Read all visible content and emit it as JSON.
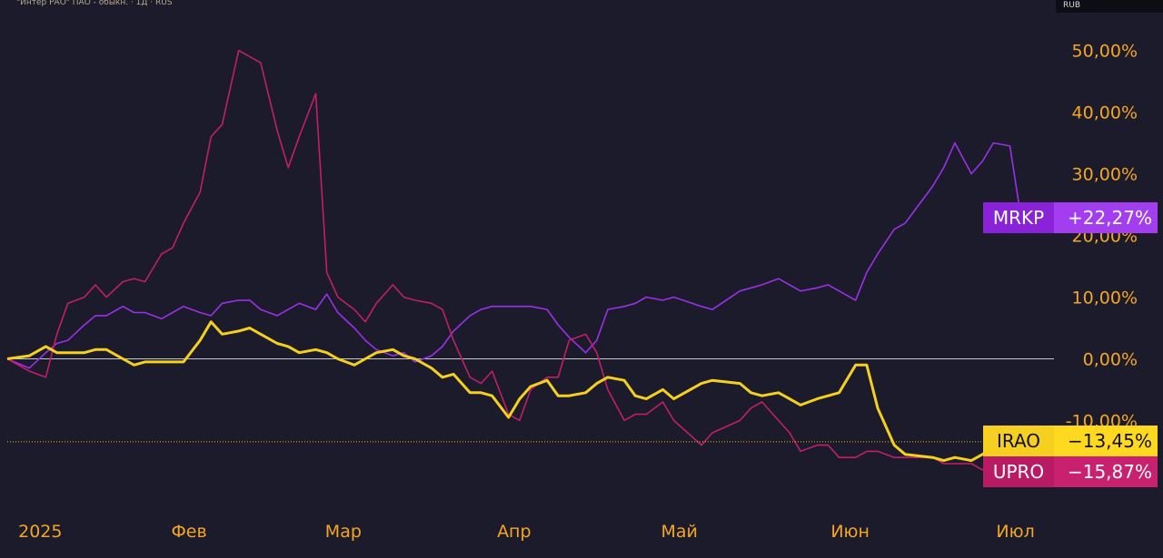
{
  "header": {
    "instrument": "\"Интер РАО\" ПАО - обыкн. · 1Д · RUS",
    "currency": "RUB"
  },
  "colors": {
    "background": "#1b1b2b",
    "axis_text": "#f5a623",
    "IRAO": "#f5d020",
    "MRKP": "#9b30e8",
    "UPRO": "#c21e6a",
    "zero_line": "#e6e6e6",
    "grid": "#2a2a3d"
  },
  "chart_data": {
    "type": "line",
    "x_tick_labels": [
      "2025",
      "Фев",
      "Мар",
      "Апр",
      "Май",
      "Июн",
      "Июл"
    ],
    "x_tick_dates": [
      "2025-01-01",
      "2025-02-01",
      "2025-03-01",
      "2025-04-01",
      "2025-05-01",
      "2025-06-01",
      "2025-07-01"
    ],
    "x_range": [
      "2024-12-30",
      "2025-07-08"
    ],
    "y_tick_values": [
      -10,
      0,
      10,
      20,
      30,
      40,
      50
    ],
    "y_tick_labels": [
      "-10,00%",
      "0,00%",
      "10,00%",
      "20,00%",
      "30,00%",
      "40,00%",
      "50,00%"
    ],
    "ylim": [
      -22,
      57
    ],
    "y_unit": "%",
    "grid": false,
    "zero_line": true,
    "series": [
      {
        "name": "MRKP",
        "last_label": "+22,27%",
        "last_value": 22.27,
        "x": [
          "2024-12-30",
          "2025-01-03",
          "2025-01-06",
          "2025-01-08",
          "2025-01-10",
          "2025-01-13",
          "2025-01-15",
          "2025-01-17",
          "2025-01-20",
          "2025-01-22",
          "2025-01-24",
          "2025-01-27",
          "2025-01-29",
          "2025-01-31",
          "2025-02-03",
          "2025-02-05",
          "2025-02-07",
          "2025-02-10",
          "2025-02-12",
          "2025-02-14",
          "2025-02-17",
          "2025-02-19",
          "2025-02-21",
          "2025-02-24",
          "2025-02-26",
          "2025-02-28",
          "2025-03-03",
          "2025-03-05",
          "2025-03-07",
          "2025-03-10",
          "2025-03-12",
          "2025-03-14",
          "2025-03-17",
          "2025-03-19",
          "2025-03-21",
          "2025-03-24",
          "2025-03-26",
          "2025-03-28",
          "2025-03-31",
          "2025-04-02",
          "2025-04-04",
          "2025-04-07",
          "2025-04-09",
          "2025-04-11",
          "2025-04-14",
          "2025-04-16",
          "2025-04-18",
          "2025-04-21",
          "2025-04-23",
          "2025-04-25",
          "2025-04-28",
          "2025-04-30",
          "2025-05-05",
          "2025-05-07",
          "2025-05-12",
          "2025-05-14",
          "2025-05-16",
          "2025-05-19",
          "2025-05-21",
          "2025-05-23",
          "2025-05-26",
          "2025-05-28",
          "2025-05-30",
          "2025-06-02",
          "2025-06-04",
          "2025-06-06",
          "2025-06-09",
          "2025-06-11",
          "2025-06-16",
          "2025-06-18",
          "2025-06-20",
          "2025-06-23",
          "2025-06-25",
          "2025-06-27",
          "2025-06-30",
          "2025-07-02",
          "2025-07-03"
        ],
        "y": [
          0,
          -1.5,
          1,
          2.5,
          3,
          5.5,
          7,
          7,
          8.5,
          7.5,
          7.5,
          6.5,
          7.5,
          8.5,
          7.5,
          7,
          9,
          9.5,
          9.5,
          8,
          7,
          8,
          9,
          8,
          10.5,
          7.5,
          5,
          3,
          1.5,
          0.5,
          1,
          -0.5,
          0.5,
          2,
          4.5,
          7,
          8,
          8.5,
          8.5,
          8.5,
          8.5,
          8,
          5.5,
          3.5,
          1,
          3,
          8,
          8.5,
          9,
          10,
          9.5,
          10,
          8.5,
          8,
          11,
          11.5,
          12,
          13,
          12,
          11,
          11.5,
          12,
          11,
          9.5,
          14,
          17,
          21,
          22,
          28,
          31,
          35,
          30,
          32,
          35,
          34.5,
          23,
          22.27
        ]
      },
      {
        "name": "IRAO",
        "last_label": "−13,45%",
        "last_value": -13.45,
        "x": [
          "2024-12-30",
          "2025-01-03",
          "2025-01-06",
          "2025-01-08",
          "2025-01-10",
          "2025-01-13",
          "2025-01-15",
          "2025-01-17",
          "2025-01-20",
          "2025-01-22",
          "2025-01-24",
          "2025-01-27",
          "2025-01-29",
          "2025-01-31",
          "2025-02-03",
          "2025-02-05",
          "2025-02-07",
          "2025-02-10",
          "2025-02-12",
          "2025-02-14",
          "2025-02-17",
          "2025-02-19",
          "2025-02-21",
          "2025-02-24",
          "2025-02-26",
          "2025-02-28",
          "2025-03-03",
          "2025-03-05",
          "2025-03-07",
          "2025-03-10",
          "2025-03-12",
          "2025-03-14",
          "2025-03-17",
          "2025-03-19",
          "2025-03-21",
          "2025-03-24",
          "2025-03-26",
          "2025-03-28",
          "2025-03-31",
          "2025-04-02",
          "2025-04-04",
          "2025-04-07",
          "2025-04-09",
          "2025-04-11",
          "2025-04-14",
          "2025-04-16",
          "2025-04-18",
          "2025-04-21",
          "2025-04-23",
          "2025-04-25",
          "2025-04-28",
          "2025-04-30",
          "2025-05-05",
          "2025-05-07",
          "2025-05-12",
          "2025-05-14",
          "2025-05-16",
          "2025-05-19",
          "2025-05-21",
          "2025-05-23",
          "2025-05-26",
          "2025-05-28",
          "2025-05-30",
          "2025-06-02",
          "2025-06-04",
          "2025-06-06",
          "2025-06-09",
          "2025-06-11",
          "2025-06-16",
          "2025-06-18",
          "2025-06-20",
          "2025-06-23",
          "2025-06-25",
          "2025-06-27",
          "2025-06-30",
          "2025-07-02",
          "2025-07-03"
        ],
        "y": [
          0,
          0.5,
          2,
          1,
          1,
          1,
          1.5,
          1.5,
          0,
          -1,
          -0.5,
          -0.5,
          -0.5,
          -0.5,
          3,
          6,
          4,
          4.5,
          5,
          4,
          2.5,
          2,
          1,
          1.5,
          1,
          0,
          -1,
          0,
          1,
          1.5,
          0.5,
          0,
          -1.5,
          -3,
          -2.5,
          -5.5,
          -5.5,
          -6,
          -9.5,
          -6.5,
          -4.5,
          -3.5,
          -6,
          -6,
          -5.5,
          -4,
          -3,
          -3.5,
          -6,
          -6.5,
          -5,
          -6.5,
          -4,
          -3.5,
          -4,
          -5.5,
          -6,
          -5.5,
          -6.5,
          -7.5,
          -6.5,
          -6,
          -5.5,
          -1,
          -1,
          -8,
          -14,
          -15.5,
          -16,
          -16.5,
          -16,
          -16.5,
          -15.5,
          -14.5,
          -14.5,
          -13.5,
          -13.45
        ]
      },
      {
        "name": "UPRO",
        "last_label": "−15,87%",
        "last_value": -15.87,
        "x": [
          "2024-12-30",
          "2025-01-03",
          "2025-01-06",
          "2025-01-08",
          "2025-01-10",
          "2025-01-13",
          "2025-01-15",
          "2025-01-17",
          "2025-01-20",
          "2025-01-22",
          "2025-01-24",
          "2025-01-27",
          "2025-01-29",
          "2025-01-31",
          "2025-02-03",
          "2025-02-05",
          "2025-02-07",
          "2025-02-10",
          "2025-02-12",
          "2025-02-14",
          "2025-02-17",
          "2025-02-19",
          "2025-02-21",
          "2025-02-24",
          "2025-02-26",
          "2025-02-28",
          "2025-03-03",
          "2025-03-05",
          "2025-03-07",
          "2025-03-10",
          "2025-03-12",
          "2025-03-14",
          "2025-03-17",
          "2025-03-19",
          "2025-03-21",
          "2025-03-24",
          "2025-03-26",
          "2025-03-28",
          "2025-03-31",
          "2025-04-02",
          "2025-04-04",
          "2025-04-07",
          "2025-04-09",
          "2025-04-11",
          "2025-04-14",
          "2025-04-16",
          "2025-04-18",
          "2025-04-21",
          "2025-04-23",
          "2025-04-25",
          "2025-04-28",
          "2025-04-30",
          "2025-05-05",
          "2025-05-07",
          "2025-05-12",
          "2025-05-14",
          "2025-05-16",
          "2025-05-19",
          "2025-05-21",
          "2025-05-23",
          "2025-05-26",
          "2025-05-28",
          "2025-05-30",
          "2025-06-02",
          "2025-06-04",
          "2025-06-06",
          "2025-06-09",
          "2025-06-11",
          "2025-06-16",
          "2025-06-18",
          "2025-06-20",
          "2025-06-23",
          "2025-06-25",
          "2025-06-27",
          "2025-06-30",
          "2025-07-02",
          "2025-07-03"
        ],
        "y": [
          0,
          -2,
          -3,
          4,
          9,
          10,
          12,
          10,
          12.5,
          13,
          12.5,
          17,
          18,
          22,
          27,
          36,
          38,
          50,
          49,
          48,
          37,
          31,
          36,
          43,
          14,
          10,
          8,
          6,
          9,
          12,
          10,
          9.5,
          9,
          8,
          3,
          -3,
          -4,
          -2,
          -9,
          -10,
          -5,
          -3,
          -3,
          3,
          4,
          1,
          -5,
          -10,
          -9,
          -9,
          -7,
          -10,
          -14,
          -12,
          -10,
          -8,
          -7,
          -10,
          -12,
          -15,
          -14,
          -14,
          -16,
          -16,
          -15,
          -15,
          -16,
          -16,
          -16,
          -17,
          -17,
          -17,
          -18,
          -17,
          -16,
          -16.5,
          -15.87
        ]
      }
    ]
  }
}
